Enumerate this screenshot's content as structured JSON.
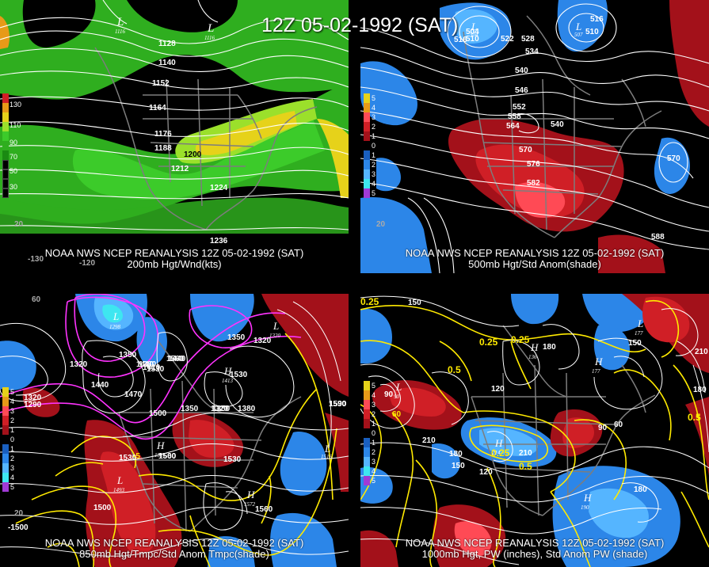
{
  "main_title": "12Z 05-02-1992 (SAT)",
  "panels": [
    {
      "caption1": "NOAA NWS NCEP REANALYSIS 12Z 05-02-1992 (SAT)",
      "caption2": "200mb Hgt/Wnd(kts)",
      "legend_values": [
        "130",
        "110",
        "90",
        "70",
        "50",
        "30"
      ],
      "contours": [
        "1128",
        "1140",
        "1152",
        "1164",
        "1176",
        "1188",
        "1200",
        "1212",
        "1224",
        "1236"
      ],
      "lows": [
        "L",
        "L"
      ],
      "low_values": [
        "1116",
        "1116"
      ],
      "edge_labels": [
        "20",
        "-130",
        "-120"
      ]
    },
    {
      "caption1": "NOAA NWS NCEP REANALYSIS 12Z 05-02-1992 (SAT)",
      "caption2": "500mb Hgt/Std Anom(shade)",
      "legend_values": [
        "5",
        "4",
        "3",
        "2",
        "1",
        "0",
        "1",
        "2",
        "3",
        "4",
        "5"
      ],
      "contours": [
        "504",
        "510",
        "516",
        "522",
        "528",
        "534",
        "540",
        "546",
        "552",
        "558",
        "564",
        "570",
        "576",
        "582",
        "588",
        "540",
        "570",
        "516",
        "510"
      ],
      "lows": [
        "L",
        "L"
      ],
      "low_values": [
        "504",
        "507"
      ],
      "edge_labels": [
        "20"
      ]
    },
    {
      "caption1": "NOAA NWS NCEP REANALYSIS 12Z 05-02-1992 (SAT)",
      "caption2": "850mb Hgt/Tmpc/Std Anom Tmpc(shade)",
      "legend_values": [
        "5",
        "4",
        "3",
        "2",
        "1",
        "0",
        "1",
        "2",
        "3",
        "4",
        "5"
      ],
      "contours": [
        "1350",
        "1320",
        "1380",
        "1410",
        "1440",
        "1470",
        "1500",
        "1530",
        "1560",
        "1590",
        "1350",
        "1320",
        "1290",
        "1380",
        "1530",
        "1560",
        "1500",
        "1410",
        "1440"
      ],
      "lows": [
        "L",
        "L",
        "L",
        "L"
      ],
      "low_values": [
        "1298",
        "1320",
        "1493",
        "1516"
      ],
      "highs": [
        "H",
        "H",
        "H"
      ],
      "high_values": [
        "1413",
        "1561",
        "1572"
      ],
      "edge_labels": [
        "60",
        "20",
        "-1500",
        "-5"
      ]
    },
    {
      "caption1": "NOAA NWS NCEP REANALYSIS 12Z 05-02-1992 (SAT)",
      "caption2": "1000mb Hgt, PW (inches), Std Anom PW (shade)",
      "legend_values": [
        "5",
        "4",
        "3",
        "2",
        "1",
        "0",
        "1",
        "2",
        "3",
        "4",
        "5"
      ],
      "contours": [
        "0.25",
        "150",
        "0.25",
        "0.25",
        "180",
        "0.5",
        "120",
        "90",
        "60",
        "210",
        "180",
        "150",
        "120",
        "210",
        "60",
        "90",
        "150",
        "180",
        "210",
        "180",
        "0.5",
        "0.25",
        "0.5"
      ],
      "lows": [
        "L",
        "L"
      ],
      "low_values": [
        "90",
        "177"
      ],
      "highs": [
        "H",
        "H",
        "H",
        "H"
      ],
      "high_values": [
        "136",
        "177",
        "214",
        "190"
      ],
      "edge_labels": [
        "5"
      ]
    }
  ],
  "colors": {
    "wind_light_green": "#2fae1f",
    "wind_green": "#3ccb2a",
    "wind_yellow_green": "#9be02b",
    "wind_yellow": "#e6d21a",
    "wind_orange": "#e79a18",
    "anom_pos_dark": "#a3111a",
    "anom_pos": "#d01f26",
    "anom_pos_light": "#ff4a55",
    "anom_neg_dark": "#1a5fbf",
    "anom_neg": "#2c86e8",
    "anom_neg_light": "#55b5ff",
    "anom_cyan": "#3ee6f0",
    "contour_white": "#ffffff",
    "contour_magenta": "#ff33ff",
    "contour_yellow": "#ffea00",
    "coastline": "#7d7d7d"
  }
}
